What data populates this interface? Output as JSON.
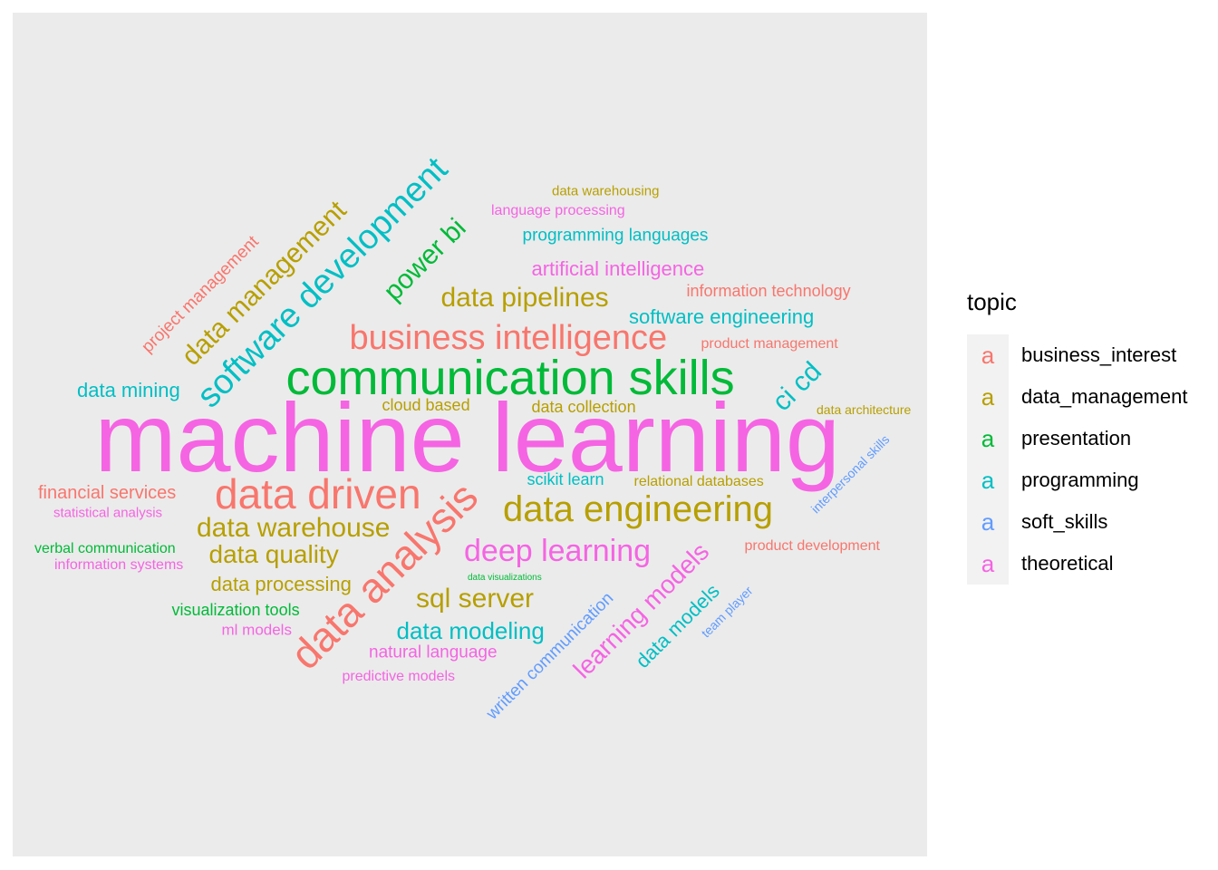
{
  "colors": {
    "business_interest": "#F8766D",
    "data_management": "#B79F00",
    "presentation": "#00BA38",
    "programming": "#00BFC4",
    "soft_skills": "#619CFF",
    "theoretical": "#F564E3"
  },
  "legend": {
    "title": "topic",
    "key_glyph": "a",
    "items": [
      {
        "label": "business_interest",
        "topic": "business_interest"
      },
      {
        "label": "data_management",
        "topic": "data_management"
      },
      {
        "label": "presentation",
        "topic": "presentation"
      },
      {
        "label": "programming",
        "topic": "programming"
      },
      {
        "label": "soft_skills",
        "topic": "soft_skills"
      },
      {
        "label": "theoretical",
        "topic": "theoretical"
      }
    ]
  },
  "chart_data": {
    "type": "wordcloud",
    "grid": false,
    "legend_position": "right",
    "words": [
      {
        "text": "machine learning",
        "topic": "theoretical"
      },
      {
        "text": "communication skills",
        "topic": "presentation"
      },
      {
        "text": "data driven",
        "topic": "business_interest"
      },
      {
        "text": "data analysis",
        "topic": "business_interest"
      },
      {
        "text": "data engineering",
        "topic": "data_management"
      },
      {
        "text": "business intelligence",
        "topic": "business_interest"
      },
      {
        "text": "software development",
        "topic": "programming"
      },
      {
        "text": "deep learning",
        "topic": "theoretical"
      },
      {
        "text": "data warehouse",
        "topic": "data_management"
      },
      {
        "text": "data pipelines",
        "topic": "data_management"
      },
      {
        "text": "sql server",
        "topic": "data_management"
      },
      {
        "text": "data quality",
        "topic": "data_management"
      },
      {
        "text": "data management",
        "topic": "data_management"
      },
      {
        "text": "power bi",
        "topic": "presentation"
      },
      {
        "text": "ci cd",
        "topic": "programming"
      },
      {
        "text": "learning models",
        "topic": "theoretical"
      },
      {
        "text": "data modeling",
        "topic": "programming"
      },
      {
        "text": "data processing",
        "topic": "data_management"
      },
      {
        "text": "artificial intelligence",
        "topic": "theoretical"
      },
      {
        "text": "software engineering",
        "topic": "programming"
      },
      {
        "text": "data mining",
        "topic": "programming"
      },
      {
        "text": "data models",
        "topic": "programming"
      },
      {
        "text": "financial services",
        "topic": "business_interest"
      },
      {
        "text": "natural language",
        "topic": "theoretical"
      },
      {
        "text": "project management",
        "topic": "business_interest"
      },
      {
        "text": "written communication",
        "topic": "soft_skills"
      },
      {
        "text": "programming languages",
        "topic": "programming"
      },
      {
        "text": "information technology",
        "topic": "business_interest"
      },
      {
        "text": "cloud based",
        "topic": "data_management"
      },
      {
        "text": "data collection",
        "topic": "data_management"
      },
      {
        "text": "scikit learn",
        "topic": "programming"
      },
      {
        "text": "visualization tools",
        "topic": "presentation"
      },
      {
        "text": "ml models",
        "topic": "theoretical"
      },
      {
        "text": "predictive models",
        "topic": "theoretical"
      },
      {
        "text": "product development",
        "topic": "business_interest"
      },
      {
        "text": "information systems",
        "topic": "theoretical"
      },
      {
        "text": "verbal communication",
        "topic": "presentation"
      },
      {
        "text": "relational databases",
        "topic": "data_management"
      },
      {
        "text": "language processing",
        "topic": "theoretical"
      },
      {
        "text": "product management",
        "topic": "business_interest"
      },
      {
        "text": "statistical analysis",
        "topic": "theoretical"
      },
      {
        "text": "data warehousing",
        "topic": "data_management"
      },
      {
        "text": "data architecture",
        "topic": "data_management"
      },
      {
        "text": "interpersonal skills",
        "topic": "soft_skills"
      },
      {
        "text": "team player",
        "topic": "soft_skills"
      },
      {
        "text": "data visualizations",
        "topic": "presentation"
      }
    ]
  }
}
